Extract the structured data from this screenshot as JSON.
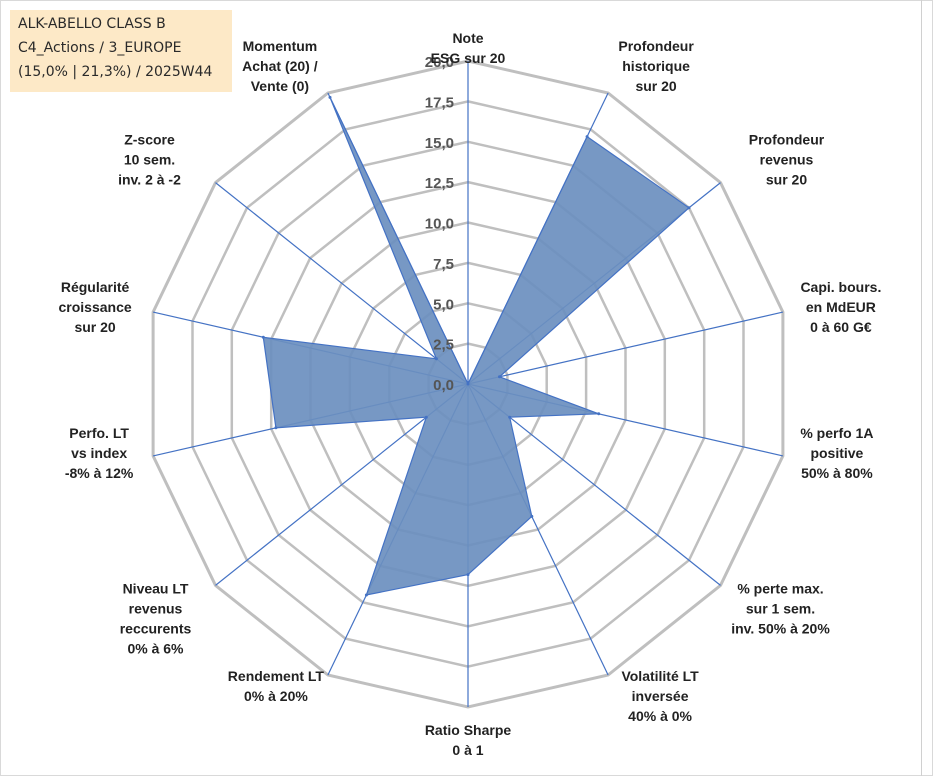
{
  "title_box": {
    "line1": "ALK-ABELLO CLASS B",
    "line2": "C4_Actions / 3_EUROPE",
    "line3": "(15,0% | 21,3%) / 2025W44"
  },
  "chart_data": {
    "type": "radar",
    "title": "ALK-ABELLO CLASS B",
    "range": [
      0,
      20
    ],
    "grid": true,
    "tick_labels": [
      "0,0",
      "2,5",
      "5,0",
      "7,5",
      "10,0",
      "12,5",
      "15,0",
      "17,5",
      "20,0"
    ],
    "axes": [
      {
        "label": [
          "Note",
          "ESG sur 20"
        ],
        "value": 0.0
      },
      {
        "label": [
          "Profondeur",
          "historique",
          "sur 20"
        ],
        "value": 17.0
      },
      {
        "label": [
          "Profondeur",
          "revenus",
          "sur 20"
        ],
        "value": 17.5
      },
      {
        "label": [
          "Capi. bours.",
          "en MdEUR",
          "0 à 60 G€"
        ],
        "value": 2.0
      },
      {
        "label": [
          "% perfo 1A",
          "positive",
          "50% à 80%"
        ],
        "value": 8.3
      },
      {
        "label": [
          "% perte max.",
          "sur 1 sem.",
          "inv. 50% à 20%"
        ],
        "value": 3.3
      },
      {
        "label": [
          "Volatilité LT",
          "inversée",
          "40% à 0%"
        ],
        "value": 9.1
      },
      {
        "label": [
          "Ratio Sharpe",
          "0 à 1"
        ],
        "value": 11.8
      },
      {
        "label": [
          "Rendement LT",
          "0% à 20%"
        ],
        "value": 14.5
      },
      {
        "label": [
          "Niveau LT",
          "revenus",
          "reccurents",
          "0% à 6%"
        ],
        "value": 3.3
      },
      {
        "label": [
          "Perfo. LT",
          "vs index",
          "-8% à 12%"
        ],
        "value": 12.2
      },
      {
        "label": [
          "Régularité",
          "croissance",
          "sur 20"
        ],
        "value": 13.0
      },
      {
        "label": [
          "Z-score",
          "10 sem.",
          "inv. 2 à -2"
        ],
        "value": 2.5
      },
      {
        "label": [
          "Momentum",
          "Achat (20) /",
          "Vente (0)"
        ],
        "value": 19.7
      }
    ],
    "series": [
      {
        "name": "ALK-ABELLO CLASS B",
        "color": "#5b82b8"
      }
    ],
    "colors": {
      "fill": "#6b8fbf",
      "stroke": "#4472c4",
      "grid": "#bfbfbf",
      "spokes": "#4472c4"
    }
  }
}
